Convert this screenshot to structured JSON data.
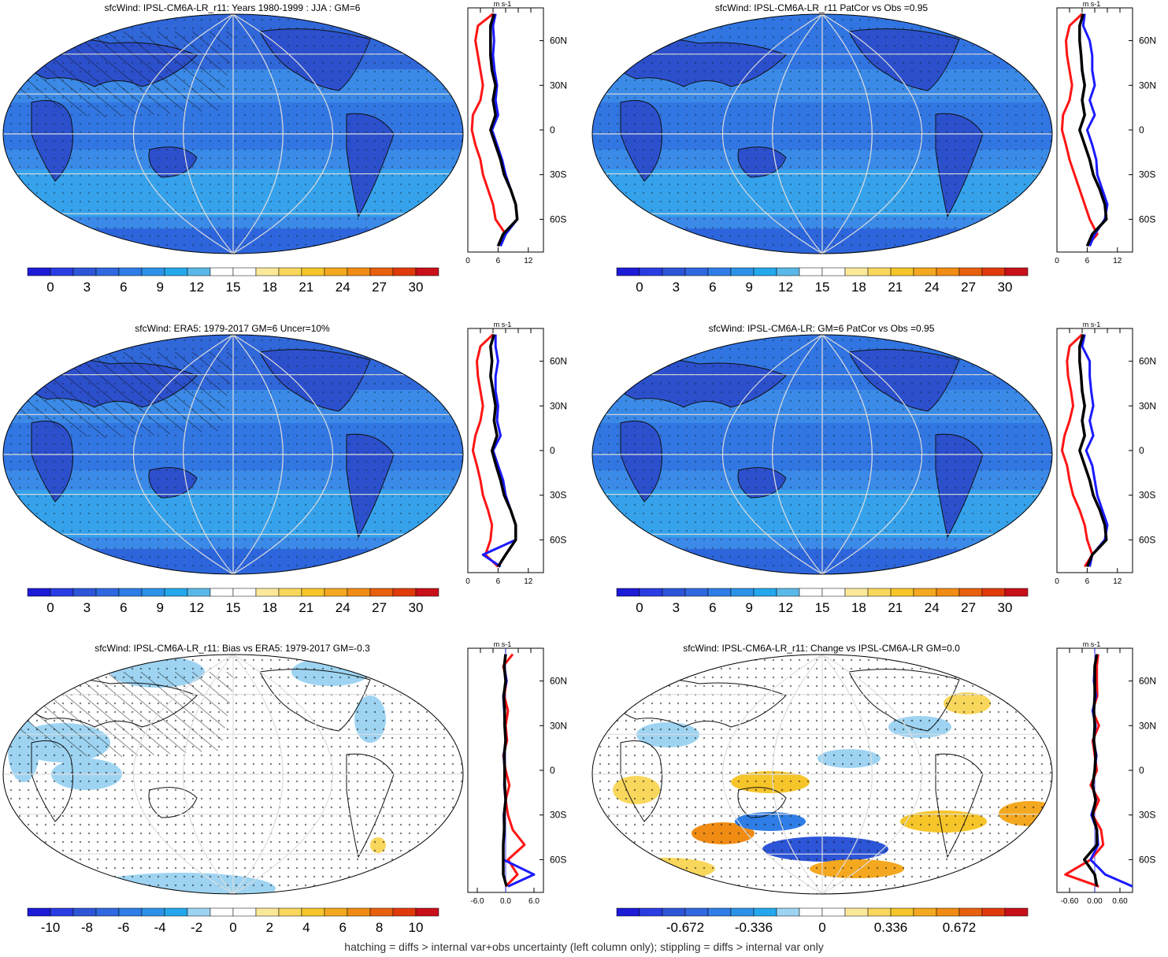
{
  "footer": "hatching = diffs > internal var+obs uncertainty (left column only); stippling = diffs > internal var only",
  "colors": {
    "cb_mean": [
      "#1c1bd6",
      "#2a3ce2",
      "#2d55d8",
      "#3068e0",
      "#2f7de6",
      "#2c92e8",
      "#24a8ec",
      "#5ab8e8",
      "#ffffff",
      "#ffffff",
      "#fbe99a",
      "#f9d75c",
      "#f6c52a",
      "#f4a820",
      "#f08c14",
      "#e8600e",
      "#e03a0a",
      "#c8101a"
    ],
    "cb_diff": [
      "#1c1bd6",
      "#2a3ce2",
      "#2d55d8",
      "#3068e0",
      "#2f7de6",
      "#2c92e8",
      "#24a8ec",
      "#9ed4f2",
      "#ffffff",
      "#ffffff",
      "#fbe99a",
      "#f9d75c",
      "#f6c52a",
      "#f4a820",
      "#f08c14",
      "#e8600e",
      "#e03a0a",
      "#c8101a"
    ],
    "model": "#1a1aff",
    "obs": "#ff1414",
    "mean": "#000000"
  },
  "panels": [
    {
      "title": "sfcWind: IPSL-CM6A-LR_r11: Years 1980-1999 : JJA : GM=6",
      "kind": "mean",
      "cb_labels": [
        "0",
        "3",
        "6",
        "9",
        "12",
        "15",
        "18",
        "21",
        "24",
        "27",
        "30"
      ],
      "zonal": {
        "units": "m s-1",
        "xticks": [
          "0",
          "6",
          "12"
        ],
        "xlim": [
          0,
          15
        ],
        "lat_labels": [
          "60N",
          "30N",
          "0",
          "30S",
          "60S"
        ]
      }
    },
    {
      "title": "sfcWind: IPSL-CM6A-LR_r11 PatCor vs Obs =0.95",
      "kind": "mean",
      "cb_labels": [
        "0",
        "3",
        "6",
        "9",
        "12",
        "15",
        "18",
        "21",
        "24",
        "27",
        "30"
      ],
      "zonal": {
        "units": "m s-1",
        "xticks": [
          "0",
          "6",
          "12"
        ],
        "xlim": [
          0,
          15
        ],
        "lat_labels": [
          "60N",
          "30N",
          "0",
          "30S",
          "60S"
        ]
      }
    },
    {
      "title": "sfcWind: ERA5: 1979-2017 GM=6 Uncer=10%",
      "kind": "mean",
      "cb_labels": [
        "0",
        "3",
        "6",
        "9",
        "12",
        "15",
        "18",
        "21",
        "24",
        "27",
        "30"
      ],
      "zonal": {
        "units": "m s-1",
        "xticks": [
          "0",
          "6",
          "12"
        ],
        "xlim": [
          0,
          15
        ],
        "lat_labels": [
          "60N",
          "30N",
          "0",
          "30S",
          "60S"
        ]
      }
    },
    {
      "title": "sfcWind: IPSL-CM6A-LR: GM=6 PatCor vs Obs =0.95",
      "kind": "mean",
      "cb_labels": [
        "0",
        "3",
        "6",
        "9",
        "12",
        "15",
        "18",
        "21",
        "24",
        "27",
        "30"
      ],
      "zonal": {
        "units": "m s-1",
        "xticks": [
          "0",
          "6",
          "12"
        ],
        "xlim": [
          0,
          15
        ],
        "lat_labels": [
          "60N",
          "30N",
          "0",
          "30S",
          "60S"
        ]
      }
    },
    {
      "title": "sfcWind: IPSL-CM6A-LR_r11: Bias vs ERA5: 1979-2017 GM=-0.3",
      "kind": "diff",
      "cb_labels": [
        "-10",
        "-8",
        "-6",
        "-4",
        "-2",
        "0",
        "2",
        "4",
        "6",
        "8",
        "10"
      ],
      "zonal": {
        "units": "m s-1",
        "xticks": [
          "-6.0",
          "0.0",
          "6.0"
        ],
        "xlim": [
          -8,
          8
        ],
        "lat_labels": [
          "60N",
          "30N",
          "0",
          "30S",
          "60S"
        ]
      }
    },
    {
      "title": "sfcWind: IPSL-CM6A-LR_r11: Change vs IPSL-CM6A-LR GM=0.0",
      "kind": "change",
      "cb_labels": [
        "-0.672",
        "-0.336",
        "0",
        "0.336",
        "0.672"
      ],
      "zonal": {
        "units": "m s-1",
        "xticks": [
          "-0.60",
          "0.00",
          "0.60"
        ],
        "xlim": [
          -0.9,
          0.9
        ],
        "lat_labels": [
          "60N",
          "30N",
          "0",
          "30S",
          "60S"
        ]
      }
    }
  ],
  "chart_data": [
    {
      "type": "heatmap",
      "title": "sfcWind: IPSL-CM6A-LR_r11: Years 1980-1999 : JJA : GM=6",
      "colorbar": [
        0,
        3,
        6,
        9,
        12,
        15,
        18,
        21,
        24,
        27,
        30
      ],
      "zonal_lat": [
        78,
        70,
        60,
        50,
        40,
        30,
        20,
        10,
        0,
        -10,
        -20,
        -30,
        -40,
        -50,
        -60,
        -70,
        -78
      ],
      "series": [
        {
          "name": "model",
          "values": [
            5.5,
            5.0,
            5.2,
            5.0,
            5.3,
            5.8,
            5.5,
            6.0,
            4.8,
            5.8,
            6.8,
            7.5,
            8.5,
            9.5,
            9.8,
            7.5,
            6.5
          ]
        },
        {
          "name": "obs",
          "values": [
            5.0,
            2.0,
            1.5,
            2.0,
            2.5,
            3.0,
            2.5,
            1.0,
            0.8,
            1.5,
            2.5,
            3.0,
            4.0,
            5.0,
            5.5,
            7.5,
            6.0
          ]
        },
        {
          "name": "mean",
          "values": [
            5.2,
            4.5,
            4.5,
            4.5,
            4.8,
            5.5,
            5.0,
            5.5,
            4.5,
            5.5,
            6.5,
            7.2,
            8.5,
            9.5,
            9.8,
            7.0,
            6.0
          ]
        }
      ]
    },
    {
      "type": "heatmap",
      "title": "sfcWind: IPSL-CM6A-LR_r11 PatCor vs Obs =0.95",
      "colorbar": [
        0,
        3,
        6,
        9,
        12,
        15,
        18,
        21,
        24,
        27,
        30
      ],
      "zonal_lat": [
        78,
        70,
        60,
        50,
        40,
        30,
        20,
        10,
        0,
        -10,
        -20,
        -30,
        -40,
        -50,
        -60,
        -70,
        -78
      ],
      "series": [
        {
          "name": "model",
          "values": [
            5.5,
            5.2,
            6.5,
            7.0,
            7.0,
            7.5,
            6.5,
            7.5,
            6.0,
            7.0,
            7.8,
            8.0,
            9.0,
            10.0,
            9.5,
            7.5,
            6.5
          ]
        },
        {
          "name": "obs",
          "values": [
            5.0,
            2.5,
            1.8,
            2.0,
            2.5,
            3.0,
            2.5,
            1.2,
            1.0,
            1.8,
            2.5,
            3.5,
            4.5,
            5.5,
            6.5,
            8.0,
            6.0
          ]
        },
        {
          "name": "mean",
          "values": [
            5.2,
            4.5,
            4.5,
            4.8,
            5.0,
            5.5,
            5.0,
            5.5,
            4.5,
            5.5,
            6.5,
            7.2,
            8.5,
            9.5,
            9.8,
            7.0,
            6.0
          ]
        }
      ]
    },
    {
      "type": "heatmap",
      "title": "sfcWind: ERA5: 1979-2017 GM=6 Uncer=10%",
      "colorbar": [
        0,
        3,
        6,
        9,
        12,
        15,
        18,
        21,
        24,
        27,
        30
      ],
      "zonal_lat": [
        78,
        70,
        60,
        50,
        40,
        30,
        20,
        10,
        0,
        -10,
        -20,
        -30,
        -40,
        -50,
        -60,
        -70,
        -78
      ],
      "series": [
        {
          "name": "model",
          "values": [
            5.5,
            5.5,
            6.0,
            5.5,
            5.5,
            6.0,
            5.8,
            6.5,
            5.0,
            6.0,
            7.0,
            7.5,
            8.5,
            9.5,
            9.5,
            3.0,
            6.5
          ]
        },
        {
          "name": "obs",
          "values": [
            5.0,
            2.5,
            1.8,
            2.0,
            2.5,
            3.0,
            2.5,
            1.5,
            1.0,
            1.8,
            2.5,
            3.0,
            4.0,
            4.8,
            4.5,
            3.5,
            6.0
          ]
        },
        {
          "name": "mean",
          "values": [
            5.2,
            4.5,
            4.8,
            4.5,
            5.0,
            5.5,
            5.2,
            5.8,
            4.8,
            5.6,
            6.5,
            7.2,
            8.5,
            9.5,
            9.5,
            7.5,
            6.0
          ]
        }
      ]
    },
    {
      "type": "heatmap",
      "title": "sfcWind: IPSL-CM6A-LR: GM=6 PatCor vs Obs =0.95",
      "colorbar": [
        0,
        3,
        6,
        9,
        12,
        15,
        18,
        21,
        24,
        27,
        30
      ],
      "zonal_lat": [
        78,
        70,
        60,
        50,
        40,
        30,
        20,
        10,
        0,
        -10,
        -20,
        -30,
        -40,
        -50,
        -60,
        -70,
        -78
      ],
      "series": [
        {
          "name": "model",
          "values": [
            5.5,
            5.0,
            6.5,
            6.5,
            6.8,
            7.2,
            6.5,
            7.2,
            5.8,
            7.0,
            7.5,
            8.0,
            9.0,
            10.0,
            9.5,
            7.0,
            6.5
          ]
        },
        {
          "name": "obs",
          "values": [
            5.0,
            2.5,
            2.0,
            2.2,
            2.8,
            3.2,
            2.5,
            1.5,
            1.0,
            2.0,
            2.5,
            3.2,
            4.5,
            5.5,
            6.0,
            7.0,
            5.5
          ]
        },
        {
          "name": "mean",
          "values": [
            5.2,
            4.5,
            4.5,
            4.8,
            5.0,
            5.5,
            5.0,
            5.5,
            4.5,
            5.5,
            6.5,
            7.2,
            8.5,
            9.5,
            9.8,
            7.0,
            6.0
          ]
        }
      ]
    },
    {
      "type": "heatmap",
      "title": "sfcWind: IPSL-CM6A-LR_r11: Bias vs ERA5: 1979-2017 GM=-0.3",
      "colorbar": [
        -10,
        -8,
        -6,
        -4,
        -2,
        0,
        2,
        4,
        6,
        8,
        10
      ],
      "zonal_lat": [
        78,
        70,
        60,
        50,
        40,
        30,
        20,
        10,
        0,
        -10,
        -20,
        -30,
        -40,
        -50,
        -60,
        -70,
        -78
      ],
      "series": [
        {
          "name": "model",
          "values": [
            0.0,
            -0.3,
            0.2,
            -0.5,
            -0.3,
            -0.2,
            0.0,
            -0.4,
            -0.2,
            -0.3,
            0.0,
            -0.4,
            -0.3,
            -0.5,
            -0.5,
            6.0,
            0.5
          ]
        },
        {
          "name": "obs",
          "values": [
            1.5,
            -0.5,
            0.2,
            -0.3,
            0.5,
            0.0,
            0.3,
            -0.5,
            0.0,
            0.8,
            0.0,
            0.5,
            1.5,
            4.0,
            0.5,
            2.5,
            0.0
          ]
        },
        {
          "name": "mean",
          "values": [
            0.0,
            -0.3,
            0.0,
            -0.4,
            -0.2,
            -0.2,
            0.0,
            -0.3,
            -0.2,
            -0.2,
            0.0,
            -0.3,
            -0.3,
            -0.5,
            -0.5,
            -0.5,
            0.2
          ]
        }
      ]
    },
    {
      "type": "heatmap",
      "title": "sfcWind: IPSL-CM6A-LR_r11: Change vs IPSL-CM6A-LR GM=0.0",
      "colorbar": [
        -0.672,
        -0.336,
        0,
        0.336,
        0.672
      ],
      "zonal_lat": [
        78,
        70,
        60,
        50,
        40,
        30,
        20,
        10,
        0,
        -10,
        -20,
        -30,
        -40,
        -50,
        -60,
        -70,
        -78
      ],
      "series": [
        {
          "name": "model",
          "values": [
            0.05,
            0.0,
            -0.02,
            0.03,
            -0.05,
            0.02,
            -0.03,
            0.04,
            0.0,
            -0.05,
            0.03,
            -0.08,
            0.05,
            0.08,
            -0.1,
            0.25,
            0.9
          ]
        },
        {
          "name": "obs",
          "values": [
            0.08,
            0.05,
            0.05,
            0.06,
            -0.05,
            0.1,
            -0.05,
            0.0,
            0.05,
            -0.1,
            0.1,
            -0.05,
            0.15,
            0.2,
            -0.1,
            -0.7,
            0.1
          ]
        },
        {
          "name": "mean",
          "values": [
            0.05,
            0.0,
            0.0,
            0.0,
            -0.02,
            0.0,
            -0.02,
            0.02,
            0.0,
            -0.05,
            0.02,
            -0.05,
            0.05,
            0.05,
            -0.25,
            0.0,
            0.05
          ]
        }
      ]
    }
  ]
}
